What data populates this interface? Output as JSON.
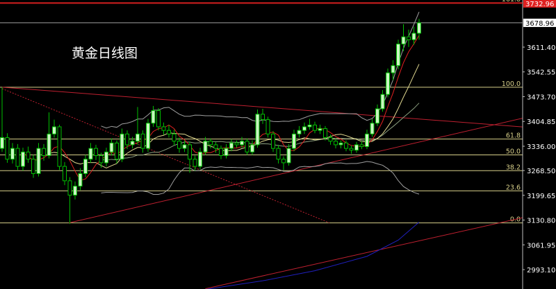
{
  "chart_data": {
    "type": "candlestick",
    "title": "黄金日线图",
    "colors": {
      "background": "#000000",
      "bull_body": "#c8f5c0",
      "bear_body": "#000000",
      "candle_outline": "#00c000",
      "ma_fast": "#e02020",
      "ma_slow": "#e0d890",
      "bollinger": "#a0a0a0",
      "fib": "#d8d08a",
      "trendline": "#c02030",
      "long_ma": "#2020c0",
      "last_price_line": "#a0a0a0",
      "target_line": "#e02020"
    },
    "y_axis": {
      "ticks": [
        "3611.40",
        "3542.55",
        "3473.70",
        "3404.85",
        "3336.00",
        "3268.50",
        "3199.65",
        "3130.80",
        "3061.95",
        "2993.10"
      ],
      "range": [
        2935,
        3740
      ]
    },
    "last_price": "3678.96",
    "target_price": "3732.96",
    "fib_levels": [
      {
        "label": "161.8",
        "price": 3735
      },
      {
        "label": "100.0",
        "price": 3500
      },
      {
        "label": "61.8",
        "price": 3356
      },
      {
        "label": "50.0",
        "price": 3312
      },
      {
        "label": "38.2",
        "price": 3268
      },
      {
        "label": "23.6",
        "price": 3212
      },
      {
        "label": "0.0",
        "price": 3123
      }
    ],
    "candles": [
      [
        3330,
        3500,
        3320,
        3360
      ],
      [
        3360,
        3372,
        3290,
        3300
      ],
      [
        3300,
        3345,
        3288,
        3330
      ],
      [
        3330,
        3342,
        3270,
        3280
      ],
      [
        3280,
        3332,
        3268,
        3320
      ],
      [
        3320,
        3335,
        3290,
        3300
      ],
      [
        3300,
        3312,
        3248,
        3260
      ],
      [
        3260,
        3345,
        3252,
        3330
      ],
      [
        3330,
        3342,
        3296,
        3310
      ],
      [
        3310,
        3430,
        3302,
        3370
      ],
      [
        3370,
        3410,
        3360,
        3390
      ],
      [
        3390,
        3396,
        3270,
        3280
      ],
      [
        3280,
        3292,
        3228,
        3240
      ],
      [
        3240,
        3250,
        3120,
        3200
      ],
      [
        3200,
        3238,
        3188,
        3225
      ],
      [
        3225,
        3275,
        3214,
        3260
      ],
      [
        3260,
        3312,
        3250,
        3300
      ],
      [
        3300,
        3345,
        3290,
        3330
      ],
      [
        3330,
        3340,
        3298,
        3310
      ],
      [
        3310,
        3318,
        3276,
        3290
      ],
      [
        3290,
        3332,
        3280,
        3320
      ],
      [
        3320,
        3358,
        3310,
        3345
      ],
      [
        3345,
        3352,
        3288,
        3300
      ],
      [
        3300,
        3385,
        3292,
        3370
      ],
      [
        3370,
        3380,
        3328,
        3340
      ],
      [
        3340,
        3362,
        3330,
        3350
      ],
      [
        3350,
        3445,
        3340,
        3370
      ],
      [
        3370,
        3380,
        3318,
        3330
      ],
      [
        3330,
        3412,
        3320,
        3400
      ],
      [
        3400,
        3448,
        3390,
        3435
      ],
      [
        3435,
        3442,
        3380,
        3390
      ],
      [
        3390,
        3402,
        3368,
        3380
      ],
      [
        3380,
        3395,
        3360,
        3370
      ],
      [
        3370,
        3382,
        3338,
        3350
      ],
      [
        3350,
        3360,
        3318,
        3330
      ],
      [
        3330,
        3352,
        3320,
        3340
      ],
      [
        3340,
        3348,
        3262,
        3300
      ],
      [
        3300,
        3310,
        3268,
        3280
      ],
      [
        3280,
        3332,
        3272,
        3320
      ],
      [
        3320,
        3362,
        3312,
        3350
      ],
      [
        3350,
        3358,
        3330,
        3340
      ],
      [
        3340,
        3348,
        3318,
        3330
      ],
      [
        3330,
        3338,
        3300,
        3310
      ],
      [
        3310,
        3342,
        3302,
        3330
      ],
      [
        3330,
        3356,
        3322,
        3345
      ],
      [
        3345,
        3352,
        3332,
        3340
      ],
      [
        3340,
        3362,
        3332,
        3350
      ],
      [
        3350,
        3358,
        3312,
        3320
      ],
      [
        3320,
        3352,
        3312,
        3340
      ],
      [
        3340,
        3438,
        3332,
        3425
      ],
      [
        3425,
        3440,
        3398,
        3410
      ],
      [
        3410,
        3418,
        3360,
        3370
      ],
      [
        3370,
        3378,
        3320,
        3330
      ],
      [
        3330,
        3340,
        3288,
        3300
      ],
      [
        3300,
        3308,
        3270,
        3290
      ],
      [
        3290,
        3342,
        3282,
        3330
      ],
      [
        3330,
        3382,
        3322,
        3370
      ],
      [
        3370,
        3392,
        3360,
        3380
      ],
      [
        3380,
        3402,
        3370,
        3390
      ],
      [
        3390,
        3412,
        3382,
        3395
      ],
      [
        3395,
        3404,
        3372,
        3380
      ],
      [
        3380,
        3396,
        3370,
        3385
      ],
      [
        3385,
        3392,
        3352,
        3360
      ],
      [
        3360,
        3368,
        3340,
        3350
      ],
      [
        3350,
        3358,
        3330,
        3340
      ],
      [
        3340,
        3352,
        3330,
        3345
      ],
      [
        3345,
        3352,
        3322,
        3330
      ],
      [
        3330,
        3338,
        3315,
        3325
      ],
      [
        3325,
        3348,
        3318,
        3340
      ],
      [
        3340,
        3350,
        3328,
        3335
      ],
      [
        3335,
        3382,
        3328,
        3370
      ],
      [
        3370,
        3412,
        3362,
        3400
      ],
      [
        3400,
        3452,
        3392,
        3440
      ],
      [
        3440,
        3492,
        3432,
        3480
      ],
      [
        3480,
        3552,
        3472,
        3540
      ],
      [
        3540,
        3575,
        3520,
        3560
      ],
      [
        3560,
        3632,
        3550,
        3620
      ],
      [
        3620,
        3675,
        3600,
        3640
      ],
      [
        3640,
        3660,
        3612,
        3632
      ],
      [
        3632,
        3668,
        3618,
        3650
      ],
      [
        3650,
        3690,
        3632,
        3678.96
      ]
    ],
    "trendlines": [
      {
        "style": "solid",
        "points": [
          [
            0,
            3500
          ],
          [
            105,
            3384
          ]
        ]
      },
      {
        "style": "solid",
        "points": [
          [
            12.8,
            3123
          ],
          [
            105,
            3431
          ]
        ]
      },
      {
        "style": "dotted",
        "points": [
          [
            0,
            3496
          ],
          [
            62.8,
            3123
          ]
        ]
      },
      {
        "style": "solid",
        "points": [
          [
            39,
            2940
          ],
          [
            105,
            3154
          ]
        ]
      }
    ],
    "long_ma": [
      [
        39,
        2938
      ],
      [
        50,
        2962
      ],
      [
        60,
        2990
      ],
      [
        70,
        3030
      ],
      [
        76,
        3075
      ],
      [
        80,
        3125
      ]
    ]
  }
}
